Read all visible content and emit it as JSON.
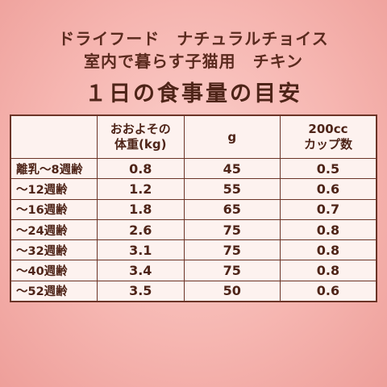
{
  "header": {
    "line1": "ドライフード　ナチュラルチョイス",
    "line2": "室内で暮らす子猫用　チキン",
    "title": "１日の食事量の目安"
  },
  "table": {
    "columns": [
      "",
      "おおよその\n体重(kg)",
      "g",
      "200cc\nカップ数"
    ],
    "rows": [
      {
        "age": "離乳～8週齢",
        "weight": "0.8",
        "grams": "45",
        "cups": "0.5"
      },
      {
        "age": "～12週齢",
        "weight": "1.2",
        "grams": "55",
        "cups": "0.6"
      },
      {
        "age": "～16週齢",
        "weight": "1.8",
        "grams": "65",
        "cups": "0.7"
      },
      {
        "age": "～24週齢",
        "weight": "2.6",
        "grams": "75",
        "cups": "0.8"
      },
      {
        "age": "～32週齢",
        "weight": "3.1",
        "grams": "75",
        "cups": "0.8"
      },
      {
        "age": "～40週齢",
        "weight": "3.4",
        "grams": "75",
        "cups": "0.8"
      },
      {
        "age": "～52週齢",
        "weight": "3.5",
        "grams": "50",
        "cups": "0.6"
      }
    ]
  }
}
